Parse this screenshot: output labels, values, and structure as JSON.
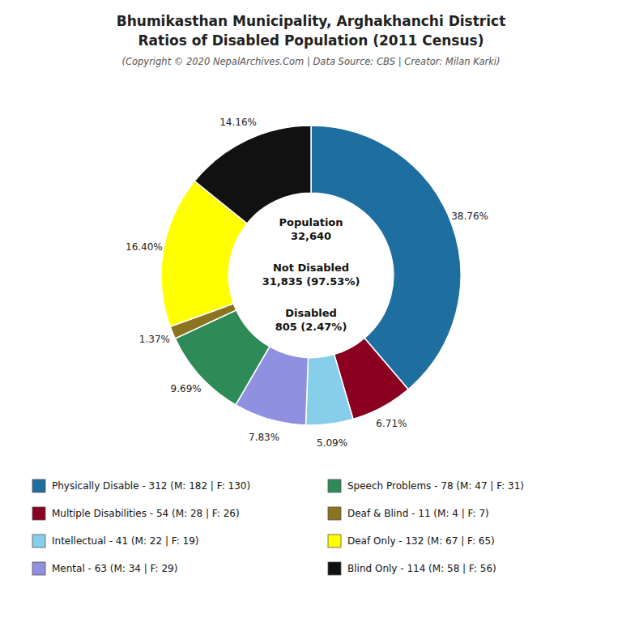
{
  "chart_data": {
    "type": "pie",
    "title": [
      "Bhumikasthan Municipality, Arghakhanchi District",
      "Ratios of Disabled Population (2011 Census)"
    ],
    "subtitle": "(Copyright © 2020 NepalArchives.Com | Data Source: CBS | Creator: Milan Karki)",
    "categories": [
      "Physically Disable - 312 (M: 182 | F: 130)",
      "Multiple Disabilities - 54 (M: 28 | F: 26)",
      "Intellectual - 41 (M: 22 | F: 19)",
      "Mental - 63 (M: 34 | F: 29)",
      "Speech Problems - 78 (M: 47 | F: 31)",
      "Deaf & Blind - 11 (M: 4 | F: 7)",
      "Deaf Only - 132 (M: 67 | F: 65)",
      "Blind Only - 114 (M: 58 | F: 56)"
    ],
    "values": [
      38.76,
      6.71,
      5.09,
      7.83,
      9.69,
      1.37,
      16.4,
      14.16
    ],
    "value_labels": [
      "38.76%",
      "6.71%",
      "5.09%",
      "7.83%",
      "9.69%",
      "1.37%",
      "16.40%",
      "14.16%"
    ],
    "colors": [
      "#1e6fa0",
      "#8b0020",
      "#87ceeb",
      "#9090e0",
      "#2e8b57",
      "#8b7320",
      "#ffff00",
      "#111111"
    ],
    "data_labels": true,
    "legend": "bottom",
    "annotations": [
      "Population",
      "32,640",
      "Not Disabled",
      "31,835 (97.53%)",
      "Disabled",
      "805 (2.47%)"
    ]
  }
}
